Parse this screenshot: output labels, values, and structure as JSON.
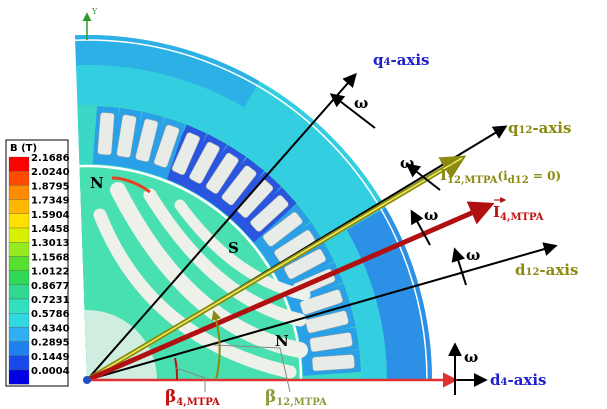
{
  "legend": {
    "title": "B (T)",
    "values": [
      "2.1686",
      "2.0240",
      "1.8795",
      "1.7349",
      "1.5904",
      "1.4458",
      "1.3013",
      "1.1568",
      "1.0122",
      "0.8677",
      "0.7231",
      "0.5786",
      "0.4340",
      "0.2895",
      "0.1449",
      "0.0004"
    ]
  },
  "axis_label": "Y",
  "poles": [
    "N",
    "S",
    "N"
  ],
  "axes": {
    "q4": {
      "main": "q",
      "sub": "4",
      "rest": "-axis"
    },
    "q12": {
      "main": "q",
      "sub": "12",
      "rest": "-axis"
    },
    "d12": {
      "main": "d",
      "sub": "12",
      "rest": "-axis"
    },
    "d4": {
      "main": "d",
      "sub": "4",
      "rest": "-axis"
    }
  },
  "omega": [
    "ω",
    "ω",
    "ω",
    "ω",
    "ω"
  ],
  "currents": {
    "i12": {
      "main": "I",
      "sub": "12,MTPA",
      "paren": "(i",
      "paren_sub": "d12",
      "paren_rest": " = 0)"
    },
    "i4": {
      "main": "I",
      "sub": "4,MTPA"
    }
  },
  "angles": {
    "beta4": {
      "main": "β",
      "sub": "4,MTPA"
    },
    "beta12": {
      "main": "β",
      "sub": "12,MTPA"
    }
  }
}
